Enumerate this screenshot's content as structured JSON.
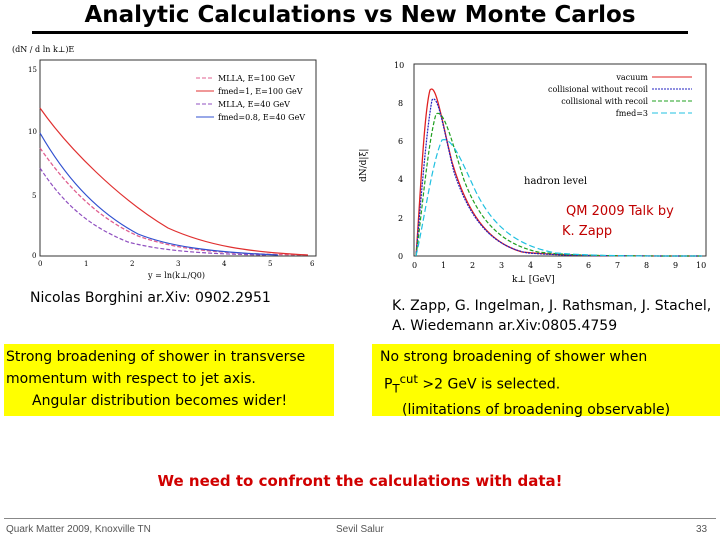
{
  "title": "Analytic Calculations vs New Monte Carlos",
  "left_plot": {
    "ylabel": "(dN / d ln k⊥)E",
    "xlabel": "y = ln(k⊥/Q0)",
    "x_ticks": [
      "0",
      "1",
      "2",
      "3",
      "4",
      "5",
      "6"
    ],
    "y_ticks": [
      "0",
      "5",
      "10",
      "15"
    ],
    "legend": [
      "MLLA, E=100 GeV",
      "fmed=1, E=100 GeV",
      "MLLA, E=40 GeV",
      "fmed=0.8, E=40 GeV"
    ],
    "colors": {
      "mlla100": "#e06090",
      "med100": "#e03030",
      "mlla40": "#9050c0",
      "med40": "#3050d0"
    }
  },
  "right_plot": {
    "ylabel": "dN/d|ξ|",
    "xlabel": "k⊥ [GeV]",
    "annotation": "hadron level",
    "x_ticks": [
      "0",
      "1",
      "2",
      "3",
      "4",
      "5",
      "6",
      "7",
      "8",
      "9",
      "10"
    ],
    "y_ticks": [
      "0",
      "2",
      "4",
      "6",
      "8",
      "10"
    ],
    "legend": [
      "vacuum",
      "collisional without recoil",
      "collisional with recoil",
      "fmed=3"
    ],
    "colors": {
      "vacuum": "#e02020",
      "norecoil": "#2020c0",
      "recoil": "#20a020",
      "fmed": "#20c0e0"
    }
  },
  "captions": {
    "zapp_talk_line1": "QM 2009 Talk by",
    "zapp_talk_line2": "K. Zapp",
    "borghini": "Nicolas Borghini ar.Xiv: 0902.2951",
    "zapp_ref_line1": "K. Zapp, G. Ingelman, J. Rathsman, J. Stachel,",
    "zapp_ref_line2": "A. Wiedemann  ar.Xiv:0805.4759"
  },
  "box_left": {
    "line1": "Strong broadening of shower in transverse",
    "line2": "momentum with respect to jet axis.",
    "line3": "Angular distribution becomes wider!"
  },
  "box_right": {
    "line1": "No strong broadening of shower when",
    "line2_pre": "P",
    "line2_sub": "T",
    "line2_sup": "cut",
    "line2_post": " >2 GeV is selected.",
    "line3": "(limitations of broadening observable)"
  },
  "conclusion": "We need to confront the calculations with data!",
  "footer": {
    "left": "Quark Matter 2009, Knoxville TN",
    "center": "Sevil Salur",
    "page": "33"
  }
}
